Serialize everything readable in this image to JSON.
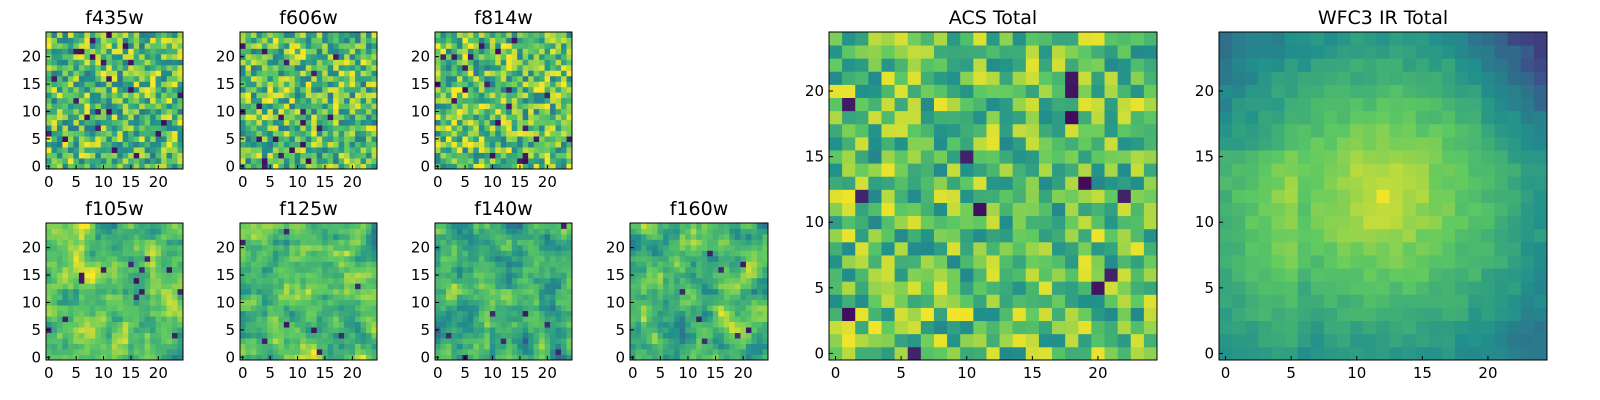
{
  "colormap": "viridis",
  "colormap_stops": [
    "#440154",
    "#3b528b",
    "#21918c",
    "#5ec962",
    "#fde725"
  ],
  "chart_data": [
    {
      "type": "heatmap",
      "title": "f435w",
      "grid_size": 25,
      "xlim": [
        0,
        24
      ],
      "ylim": [
        0,
        24
      ],
      "xticks": [
        "0",
        "5",
        "10",
        "15",
        "20"
      ],
      "yticks": [
        "0",
        "5",
        "10",
        "15",
        "20"
      ],
      "pattern": "uniform_noise",
      "mean_level": 0.7,
      "spread": 0.3,
      "seed": 11
    },
    {
      "type": "heatmap",
      "title": "f606w",
      "grid_size": 25,
      "xlim": [
        0,
        24
      ],
      "ylim": [
        0,
        24
      ],
      "xticks": [
        "0",
        "5",
        "10",
        "15",
        "20"
      ],
      "yticks": [
        "0",
        "5",
        "10",
        "15",
        "20"
      ],
      "pattern": "uniform_noise",
      "mean_level": 0.7,
      "spread": 0.3,
      "seed": 23
    },
    {
      "type": "heatmap",
      "title": "f814w",
      "grid_size": 25,
      "xlim": [
        0,
        24
      ],
      "ylim": [
        0,
        24
      ],
      "xticks": [
        "0",
        "5",
        "10",
        "15",
        "20"
      ],
      "yticks": [
        "0",
        "5",
        "10",
        "15",
        "20"
      ],
      "pattern": "uniform_noise",
      "mean_level": 0.72,
      "spread": 0.3,
      "seed": 37
    },
    {
      "type": "heatmap",
      "title": "f105w",
      "grid_size": 25,
      "xlim": [
        0,
        24
      ],
      "ylim": [
        0,
        24
      ],
      "xticks": [
        "0",
        "5",
        "10",
        "15",
        "20"
      ],
      "yticks": [
        "0",
        "5",
        "10",
        "15",
        "20"
      ],
      "pattern": "smooth_noise",
      "mean_level": 0.72,
      "spread": 0.28,
      "seed": 41
    },
    {
      "type": "heatmap",
      "title": "f125w",
      "grid_size": 25,
      "xlim": [
        0,
        24
      ],
      "ylim": [
        0,
        24
      ],
      "xticks": [
        "0",
        "5",
        "10",
        "15",
        "20"
      ],
      "yticks": [
        "0",
        "5",
        "10",
        "15",
        "20"
      ],
      "pattern": "smooth_noise",
      "mean_level": 0.7,
      "spread": 0.28,
      "seed": 53
    },
    {
      "type": "heatmap",
      "title": "f140w",
      "grid_size": 25,
      "xlim": [
        0,
        24
      ],
      "ylim": [
        0,
        24
      ],
      "xticks": [
        "0",
        "5",
        "10",
        "15",
        "20"
      ],
      "yticks": [
        "0",
        "5",
        "10",
        "15",
        "20"
      ],
      "pattern": "smooth_noise",
      "mean_level": 0.62,
      "spread": 0.3,
      "seed": 67
    },
    {
      "type": "heatmap",
      "title": "f160w",
      "grid_size": 25,
      "xlim": [
        0,
        24
      ],
      "ylim": [
        0,
        24
      ],
      "xticks": [
        "0",
        "5",
        "10",
        "15",
        "20"
      ],
      "yticks": [
        "0",
        "5",
        "10",
        "15",
        "20"
      ],
      "pattern": "smooth_noise",
      "mean_level": 0.66,
      "spread": 0.3,
      "seed": 79
    },
    {
      "type": "heatmap",
      "title": "ACS Total",
      "grid_size": 25,
      "xlim": [
        0,
        24
      ],
      "ylim": [
        0,
        24
      ],
      "xticks": [
        "0",
        "5",
        "10",
        "15",
        "20"
      ],
      "yticks": [
        "0",
        "5",
        "10",
        "15",
        "20"
      ],
      "pattern": "uniform_noise",
      "mean_level": 0.72,
      "spread": 0.26,
      "seed": 97
    },
    {
      "type": "heatmap",
      "title": "WFC3 IR Total",
      "grid_size": 25,
      "xlim": [
        0,
        24
      ],
      "ylim": [
        0,
        24
      ],
      "xticks": [
        "0",
        "5",
        "10",
        "15",
        "20"
      ],
      "yticks": [
        "0",
        "5",
        "10",
        "15",
        "20"
      ],
      "pattern": "radial_peak",
      "peak_cell": [
        12,
        12
      ],
      "peak_level": 0.95,
      "edge_level": 0.35,
      "dark_corner": "top-right",
      "seed": 113
    }
  ]
}
